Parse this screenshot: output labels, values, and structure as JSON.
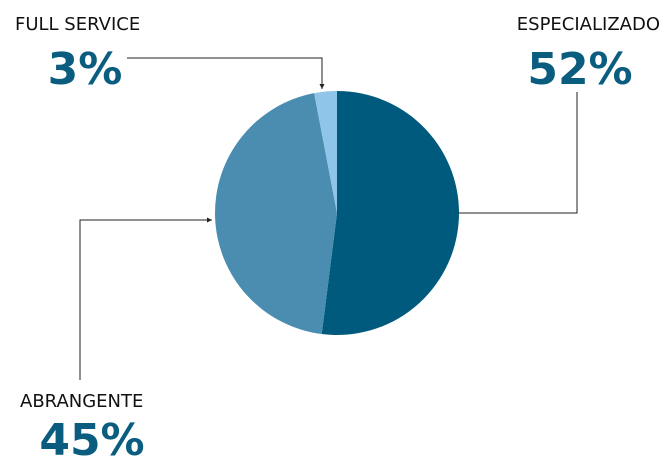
{
  "chart_data": {
    "type": "pie",
    "categories": [
      "ESPECIALIZADO",
      "ABRANGENTE",
      "FULL SERVICE"
    ],
    "values": [
      52,
      45,
      3
    ],
    "value_labels": [
      "52%",
      "45%",
      "3%"
    ],
    "colors": [
      "#005a7d",
      "#4a8db0",
      "#8ec5e8"
    ]
  }
}
